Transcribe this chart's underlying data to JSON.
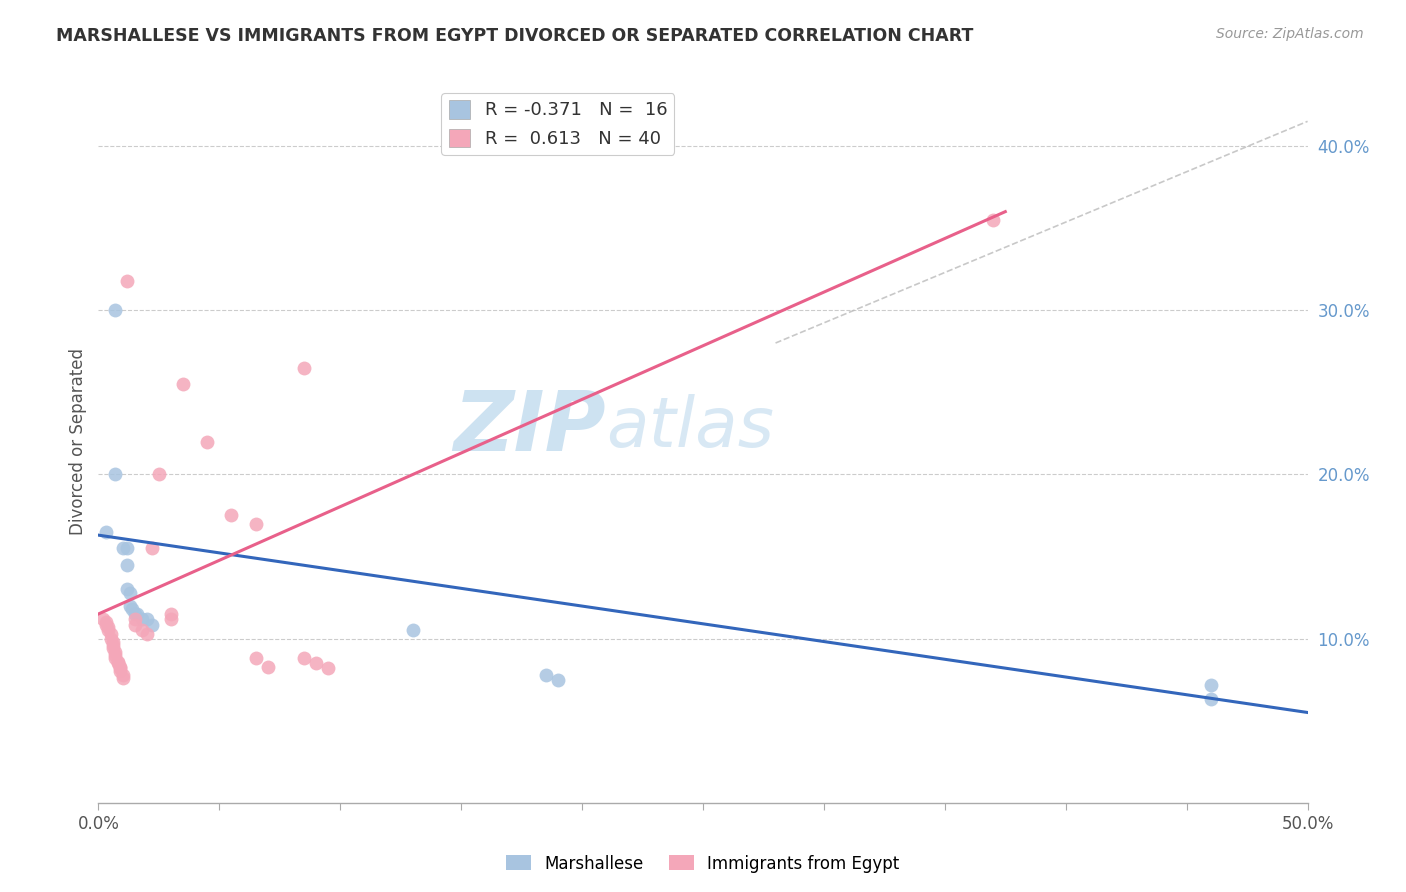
{
  "title": "MARSHALLESE VS IMMIGRANTS FROM EGYPT DIVORCED OR SEPARATED CORRELATION CHART",
  "source": "Source: ZipAtlas.com",
  "ylabel": "Divorced or Separated",
  "xlim": [
    0.0,
    0.5
  ],
  "ylim": [
    0.0,
    0.44
  ],
  "yticks_right": [
    0.1,
    0.2,
    0.3,
    0.4
  ],
  "yticklabels_right": [
    "10.0%",
    "20.0%",
    "30.0%",
    "40.0%"
  ],
  "grid_color": "#cccccc",
  "background_color": "#ffffff",
  "blue_color": "#a8c4e0",
  "pink_color": "#f4a7b9",
  "blue_line_color": "#3366bb",
  "pink_line_color": "#e8608a",
  "blue_line": [
    [
      0.0,
      0.163
    ],
    [
      0.5,
      0.055
    ]
  ],
  "pink_line": [
    [
      0.0,
      0.115
    ],
    [
      0.375,
      0.36
    ]
  ],
  "dashed_line": [
    [
      0.28,
      0.28
    ],
    [
      0.5,
      0.415
    ]
  ],
  "blue_scatter": [
    [
      0.003,
      0.165
    ],
    [
      0.007,
      0.2
    ],
    [
      0.007,
      0.3
    ],
    [
      0.01,
      0.155
    ],
    [
      0.012,
      0.155
    ],
    [
      0.012,
      0.145
    ],
    [
      0.012,
      0.13
    ],
    [
      0.013,
      0.128
    ],
    [
      0.013,
      0.12
    ],
    [
      0.014,
      0.118
    ],
    [
      0.015,
      0.115
    ],
    [
      0.016,
      0.115
    ],
    [
      0.018,
      0.112
    ],
    [
      0.02,
      0.112
    ],
    [
      0.022,
      0.108
    ],
    [
      0.13,
      0.105
    ],
    [
      0.185,
      0.078
    ],
    [
      0.19,
      0.075
    ],
    [
      0.46,
      0.072
    ],
    [
      0.46,
      0.063
    ]
  ],
  "pink_scatter": [
    [
      0.002,
      0.112
    ],
    [
      0.003,
      0.11
    ],
    [
      0.003,
      0.108
    ],
    [
      0.004,
      0.107
    ],
    [
      0.004,
      0.105
    ],
    [
      0.005,
      0.103
    ],
    [
      0.005,
      0.1
    ],
    [
      0.006,
      0.098
    ],
    [
      0.006,
      0.096
    ],
    [
      0.006,
      0.094
    ],
    [
      0.007,
      0.092
    ],
    [
      0.007,
      0.09
    ],
    [
      0.007,
      0.088
    ],
    [
      0.008,
      0.086
    ],
    [
      0.008,
      0.085
    ],
    [
      0.009,
      0.083
    ],
    [
      0.009,
      0.082
    ],
    [
      0.009,
      0.08
    ],
    [
      0.01,
      0.078
    ],
    [
      0.01,
      0.076
    ],
    [
      0.015,
      0.112
    ],
    [
      0.015,
      0.108
    ],
    [
      0.018,
      0.105
    ],
    [
      0.02,
      0.103
    ],
    [
      0.022,
      0.155
    ],
    [
      0.025,
      0.2
    ],
    [
      0.03,
      0.115
    ],
    [
      0.03,
      0.112
    ],
    [
      0.035,
      0.255
    ],
    [
      0.045,
      0.22
    ],
    [
      0.055,
      0.175
    ],
    [
      0.065,
      0.17
    ],
    [
      0.065,
      0.088
    ],
    [
      0.07,
      0.083
    ],
    [
      0.085,
      0.265
    ],
    [
      0.085,
      0.088
    ],
    [
      0.09,
      0.085
    ],
    [
      0.095,
      0.082
    ],
    [
      0.37,
      0.355
    ],
    [
      0.012,
      0.318
    ]
  ]
}
